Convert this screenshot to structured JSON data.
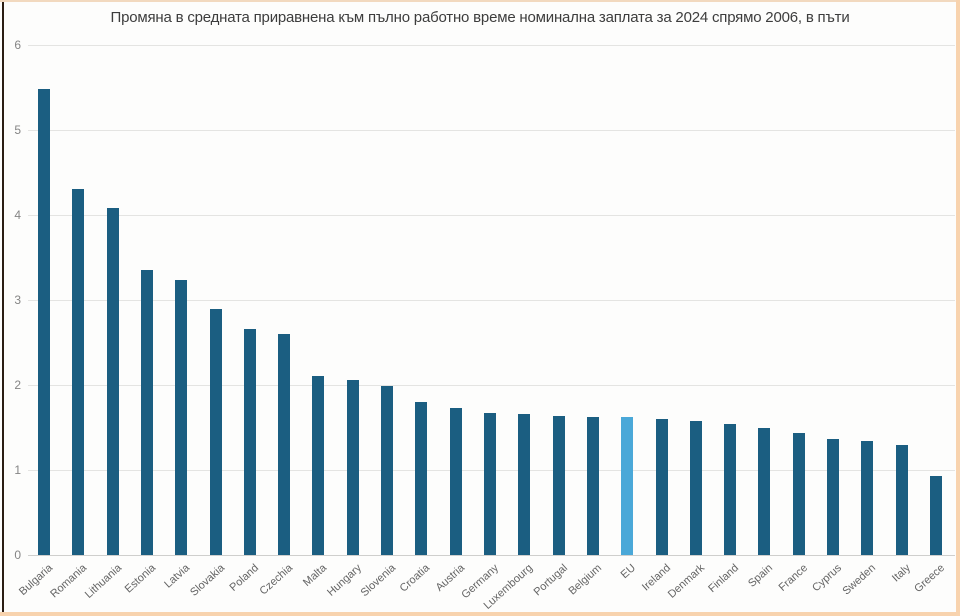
{
  "chart_data": {
    "type": "bar",
    "title": "Промяна в средната приравнена към пълно работно време номинална заплата за 2024 спрямо 2006, в пъти",
    "categories": [
      "Bulgaria",
      "Romania",
      "Lithuania",
      "Estonia",
      "Latvia",
      "Slovakia",
      "Poland",
      "Czechia",
      "Malta",
      "Hungary",
      "Slovenia",
      "Croatia",
      "Austria",
      "Germany",
      "Luxembourg",
      "Portugal",
      "Belgium",
      "EU",
      "Ireland",
      "Denmark",
      "Finland",
      "Spain",
      "France",
      "Cyprus",
      "Sweden",
      "Italy",
      "Greece"
    ],
    "values": [
      5.48,
      4.31,
      4.08,
      3.35,
      3.24,
      2.89,
      2.66,
      2.6,
      2.11,
      2.06,
      1.99,
      1.8,
      1.73,
      1.67,
      1.66,
      1.63,
      1.62,
      1.62,
      1.6,
      1.58,
      1.54,
      1.5,
      1.44,
      1.37,
      1.34,
      1.29,
      0.93
    ],
    "highlight_category": "EU",
    "bar_color": "#1b5e81",
    "highlight_color": "#4aa8d8",
    "xlabel": "",
    "ylabel": "",
    "ylim": [
      0,
      6
    ],
    "yticks": [
      0,
      1,
      2,
      3,
      4,
      5,
      6
    ],
    "grid": true,
    "legend": "none"
  },
  "colors": {
    "background": "#fdfdfc",
    "title_text": "#3d3d3d",
    "gridline": "#e4e4e2",
    "axis_line": "#cfcfcd",
    "y_tick_label": "#858585",
    "x_label": "#646464",
    "frame_left": "#2b1d13",
    "frame_top": "#f2d9bf",
    "frame_side": "#f8d3ae"
  }
}
